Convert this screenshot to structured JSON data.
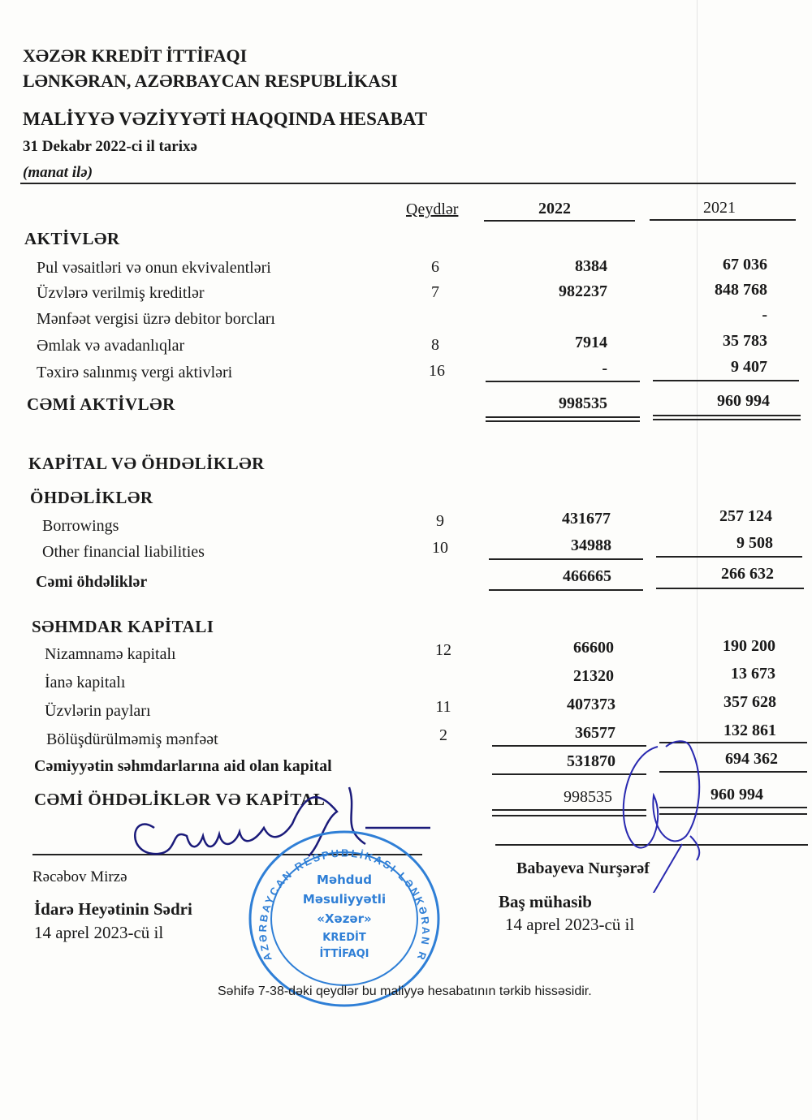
{
  "header": {
    "company": "XƏZƏR KREDİT İTTİFAQI",
    "location": "LƏNKƏRAN, AZƏRBAYCAN RESPUBLİKASI",
    "title": "MALİYYƏ VƏZİYYƏTİ HAQQINDA HESABAT",
    "date": "31 Dekabr 2022-ci il tarixə",
    "currency": "(manat ilə)"
  },
  "columns": {
    "notes": "Qeydlər",
    "y2022": "2022",
    "y2021": "2021"
  },
  "assets": {
    "heading": "AKTİVLƏR",
    "rows": [
      {
        "label": "Pul vəsaitləri və onun ekvivalentləri",
        "note": "6",
        "v2022": "8384",
        "v2021": "67 036"
      },
      {
        "label": "Üzvlərə verilmiş kreditlər",
        "note": "7",
        "v2022": "982237",
        "v2021": "848 768"
      },
      {
        "label": "Mənfəət vergisi üzrə debitor borcları",
        "note": "",
        "v2022": "",
        "v2021": "-"
      },
      {
        "label": "Əmlak və avadanlıqlar",
        "note": "8",
        "v2022": "7914",
        "v2021": "35 783"
      },
      {
        "label": "Təxirə salınmış vergi aktivləri",
        "note": "16",
        "v2022": "-",
        "v2021": "9 407"
      }
    ],
    "total": {
      "label": "CƏMİ AKTİVLƏR",
      "v2022": "998535",
      "v2021": "960 994"
    }
  },
  "equity_liabilities": {
    "heading": "KAPİTAL VƏ ÖHDƏLİKLƏR",
    "liabilities": {
      "heading": "ÖHDƏLİKLƏR",
      "rows": [
        {
          "label": "Borrowings",
          "note": "9",
          "v2022": "431677",
          "v2021": "257 124"
        },
        {
          "label": "Other financial liabilities",
          "note": "10",
          "v2022": "34988",
          "v2021": "9 508"
        }
      ],
      "total": {
        "label": "Cəmi öhdəliklər",
        "v2022": "466665",
        "v2021": "266 632"
      }
    },
    "equity": {
      "heading": "SƏHMDAR KAPİTALI",
      "rows": [
        {
          "label": "Nizamnamə kapitalı",
          "note": "12",
          "v2022": "66600",
          "v2021": "190 200"
        },
        {
          "label": "İanə kapitalı",
          "note": "",
          "v2022": "21320",
          "v2021": "13 673"
        },
        {
          "label": "Üzvlərin payları",
          "note": "11",
          "v2022": "407373",
          "v2021": "357 628"
        },
        {
          "label": "Bölüşdürülməmiş mənfəət",
          "note": "2",
          "v2022": "36577",
          "v2021": "132 861"
        }
      ],
      "total": {
        "label": "Cəmiyyətin səhmdarlarına aid olan kapital",
        "v2022": "531870",
        "v2021": "694 362"
      }
    },
    "grand_total": {
      "label": "CƏMİ ÖHDƏLİKLƏR VƏ KAPİTAL",
      "v2022": "998535",
      "v2021": "960 994"
    }
  },
  "signatures": {
    "left": {
      "name": "Rəcəbov Mirzə",
      "position": "İdarə Heyətinin Sədri",
      "date": "14  aprel  2023-cü il"
    },
    "right": {
      "name": "Babayeva Nurşərəf",
      "position": "Baş mühasib",
      "date": "14 aprel 2023-cü il"
    }
  },
  "stamp": {
    "ring": "AZƏRBAYCAN RESPUBLİKASI LƏNKƏRAN RAYONU",
    "lines": [
      "Məhdud",
      "Məsuliyyətli",
      "«Xəzər»",
      "KREDİT",
      "İTTİFAQI"
    ],
    "color": "#2f7fd6"
  },
  "footer": "Səhifə 7-38-dəki qeydlər bu maliyyə hesabatının tərkib hissəsidir."
}
